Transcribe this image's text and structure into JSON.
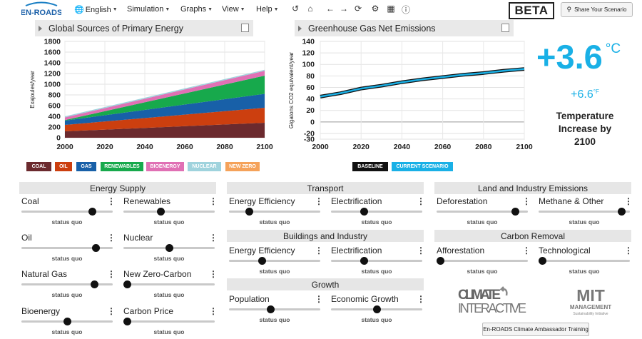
{
  "app": {
    "logo_text": "EN-ROADS"
  },
  "menu": [
    {
      "label": "English",
      "icon": "globe-icon"
    },
    {
      "label": "Simulation"
    },
    {
      "label": "Graphs"
    },
    {
      "label": "View"
    },
    {
      "label": "Help"
    }
  ],
  "toolbar_icons": [
    "undo-icon",
    "home-icon",
    "back-icon",
    "forward-icon",
    "refresh-icon",
    "settings-icon",
    "table-icon",
    "info-icon"
  ],
  "beta_label": "BETA",
  "share_label": "Share Your Scenario",
  "graphs": {
    "left_title": "Global Sources of Primary Energy",
    "right_title": "Greenhouse Gas Net Emissions"
  },
  "temperature": {
    "celsius": "+3.6",
    "celsius_unit": "°C",
    "fahrenheit": "+6.6",
    "fahrenheit_unit": "°F",
    "label": "Temperature Increase by 2100"
  },
  "chart_data": [
    {
      "type": "area",
      "title": "Global Sources of Primary Energy",
      "ylabel": "Exajoules/year",
      "xlabel": "",
      "x": [
        2000,
        2100
      ],
      "xticks": [
        2000,
        2020,
        2040,
        2060,
        2080,
        2100
      ],
      "yticks": [
        0,
        200,
        400,
        600,
        800,
        1000,
        1200,
        1400,
        1600,
        1800
      ],
      "ylim": [
        0,
        1800
      ],
      "stacked": true,
      "series": [
        {
          "name": "COAL",
          "color": "#6b2a2e",
          "values": [
            120,
            280
          ]
        },
        {
          "name": "OIL",
          "color": "#cc3f0f",
          "values": [
            120,
            280
          ]
        },
        {
          "name": "GAS",
          "color": "#1860a8",
          "values": [
            80,
            260
          ]
        },
        {
          "name": "RENEWABLES",
          "color": "#17a94c",
          "values": [
            10,
            340
          ]
        },
        {
          "name": "BIOENERGY",
          "color": "#e070b4",
          "values": [
            50,
            90
          ]
        },
        {
          "name": "NUCLEAR",
          "color": "#9fd3dd",
          "values": [
            20,
            20
          ]
        },
        {
          "name": "NEW ZERO",
          "color": "#f5a25a",
          "values": [
            0,
            0
          ]
        }
      ]
    },
    {
      "type": "line",
      "title": "Greenhouse Gas Net Emissions",
      "ylabel": "Gigatons CO2 equivalent/year",
      "xlabel": "",
      "xticks": [
        2000,
        2020,
        2040,
        2060,
        2080,
        2100
      ],
      "yticks": [
        -30,
        -20,
        0,
        20,
        40,
        60,
        80,
        100,
        120,
        140
      ],
      "ylim": [
        -30,
        140
      ],
      "series": [
        {
          "name": "BASELINE",
          "color": "#111111",
          "x": [
            2000,
            2005,
            2010,
            2015,
            2020,
            2030,
            2040,
            2050,
            2060,
            2070,
            2080,
            2090,
            2100
          ],
          "values": [
            44,
            47,
            50,
            54,
            58,
            63,
            69,
            74,
            78,
            82,
            85,
            89,
            92
          ]
        },
        {
          "name": "CURRENT SCENARIO",
          "color": "#19b0e6",
          "x": [
            2000,
            2005,
            2010,
            2015,
            2020,
            2030,
            2040,
            2050,
            2060,
            2070,
            2080,
            2090,
            2100
          ],
          "values": [
            44,
            47,
            50,
            54,
            58,
            63,
            69,
            74,
            78,
            82,
            85,
            89,
            92
          ]
        }
      ]
    }
  ],
  "sections": {
    "energy_supply": "Energy Supply",
    "transport": "Transport",
    "buildings": "Buildings and Industry",
    "growth": "Growth",
    "land": "Land and Industry Emissions",
    "carbon": "Carbon Removal"
  },
  "status_quo": "status quo",
  "controls": {
    "coal": {
      "label": "Coal",
      "level": 0.8
    },
    "renewables": {
      "label": "Renewables",
      "level": 0.4
    },
    "oil": {
      "label": "Oil",
      "level": 0.85
    },
    "nuclear": {
      "label": "Nuclear",
      "level": 0.5
    },
    "natural_gas": {
      "label": "Natural Gas",
      "level": 0.83
    },
    "new_zero_carbon": {
      "label": "New Zero-Carbon",
      "level": 0.0
    },
    "bioenergy": {
      "label": "Bioenergy",
      "level": 0.5
    },
    "carbon_price": {
      "label": "Carbon Price",
      "level": 0.0
    },
    "t_efficiency": {
      "label": "Energy Efficiency",
      "level": 0.2
    },
    "t_electrification": {
      "label": "Electrification",
      "level": 0.35
    },
    "b_efficiency": {
      "label": "Energy Efficiency",
      "level": 0.35
    },
    "b_electrification": {
      "label": "Electrification",
      "level": 0.35
    },
    "population": {
      "label": "Population",
      "level": 0.45
    },
    "economic_growth": {
      "label": "Economic Growth",
      "level": 0.5
    },
    "deforestation": {
      "label": "Deforestation",
      "level": 0.9
    },
    "methane": {
      "label": "Methane & Other",
      "level": 0.95
    },
    "afforestation": {
      "label": "Afforestation",
      "level": 0.0
    },
    "technological": {
      "label": "Technological",
      "level": 0.0
    }
  },
  "logos": {
    "climate_interactive_line1": "CLIMATE",
    "climate_interactive_line2": "INTERACTIVE",
    "mit_line1": "MIT",
    "mit_line2": "MANAGEMENT",
    "mit_line3": "Sustainability Initiative"
  },
  "training_label": "En-ROADS Climate Ambassador Training"
}
